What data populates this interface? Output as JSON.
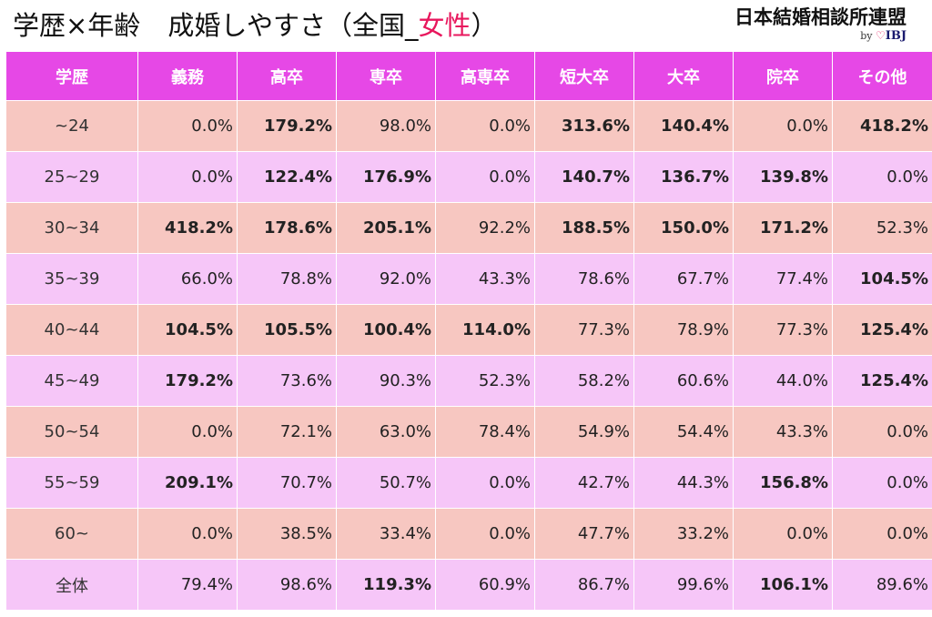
{
  "header": {
    "title_prefix": "学歴×年齢",
    "title_main": "成婚しやすさ（全国_",
    "title_highlight": "女性",
    "title_suffix": "）",
    "brand_name": "日本結婚相談所連盟",
    "brand_by": "by",
    "brand_heart": "♡",
    "brand_ibj": "IBJ"
  },
  "colors": {
    "header_bg": "#e648e6",
    "row_odd_bg": "#f7c7c1",
    "row_even_bg": "#f6c6f8",
    "highlight_text": "#e8175d"
  },
  "table": {
    "columns": [
      "学歴",
      "義務",
      "高卒",
      "専卒",
      "高専卒",
      "短大卒",
      "大卒",
      "院卒",
      "その他"
    ],
    "rows": [
      {
        "label": "~24",
        "cells": [
          {
            "v": "0.0%",
            "bold": false
          },
          {
            "v": "179.2%",
            "bold": true
          },
          {
            "v": "98.0%",
            "bold": false
          },
          {
            "v": "0.0%",
            "bold": false
          },
          {
            "v": "313.6%",
            "bold": true
          },
          {
            "v": "140.4%",
            "bold": true
          },
          {
            "v": "0.0%",
            "bold": false
          },
          {
            "v": "418.2%",
            "bold": true
          }
        ]
      },
      {
        "label": "25~29",
        "cells": [
          {
            "v": "0.0%",
            "bold": false
          },
          {
            "v": "122.4%",
            "bold": true
          },
          {
            "v": "176.9%",
            "bold": true
          },
          {
            "v": "0.0%",
            "bold": false
          },
          {
            "v": "140.7%",
            "bold": true
          },
          {
            "v": "136.7%",
            "bold": true
          },
          {
            "v": "139.8%",
            "bold": true
          },
          {
            "v": "0.0%",
            "bold": false
          }
        ]
      },
      {
        "label": "30~34",
        "cells": [
          {
            "v": "418.2%",
            "bold": true
          },
          {
            "v": "178.6%",
            "bold": true
          },
          {
            "v": "205.1%",
            "bold": true
          },
          {
            "v": "92.2%",
            "bold": false
          },
          {
            "v": "188.5%",
            "bold": true
          },
          {
            "v": "150.0%",
            "bold": true
          },
          {
            "v": "171.2%",
            "bold": true
          },
          {
            "v": "52.3%",
            "bold": false
          }
        ]
      },
      {
        "label": "35~39",
        "cells": [
          {
            "v": "66.0%",
            "bold": false
          },
          {
            "v": "78.8%",
            "bold": false
          },
          {
            "v": "92.0%",
            "bold": false
          },
          {
            "v": "43.3%",
            "bold": false
          },
          {
            "v": "78.6%",
            "bold": false
          },
          {
            "v": "67.7%",
            "bold": false
          },
          {
            "v": "77.4%",
            "bold": false
          },
          {
            "v": "104.5%",
            "bold": true
          }
        ]
      },
      {
        "label": "40~44",
        "cells": [
          {
            "v": "104.5%",
            "bold": true
          },
          {
            "v": "105.5%",
            "bold": true
          },
          {
            "v": "100.4%",
            "bold": true
          },
          {
            "v": "114.0%",
            "bold": true
          },
          {
            "v": "77.3%",
            "bold": false
          },
          {
            "v": "78.9%",
            "bold": false
          },
          {
            "v": "77.3%",
            "bold": false
          },
          {
            "v": "125.4%",
            "bold": true
          }
        ]
      },
      {
        "label": "45~49",
        "cells": [
          {
            "v": "179.2%",
            "bold": true
          },
          {
            "v": "73.6%",
            "bold": false
          },
          {
            "v": "90.3%",
            "bold": false
          },
          {
            "v": "52.3%",
            "bold": false
          },
          {
            "v": "58.2%",
            "bold": false
          },
          {
            "v": "60.6%",
            "bold": false
          },
          {
            "v": "44.0%",
            "bold": false
          },
          {
            "v": "125.4%",
            "bold": true
          }
        ]
      },
      {
        "label": "50~54",
        "cells": [
          {
            "v": "0.0%",
            "bold": false
          },
          {
            "v": "72.1%",
            "bold": false
          },
          {
            "v": "63.0%",
            "bold": false
          },
          {
            "v": "78.4%",
            "bold": false
          },
          {
            "v": "54.9%",
            "bold": false
          },
          {
            "v": "54.4%",
            "bold": false
          },
          {
            "v": "43.3%",
            "bold": false
          },
          {
            "v": "0.0%",
            "bold": false
          }
        ]
      },
      {
        "label": "55~59",
        "cells": [
          {
            "v": "209.1%",
            "bold": true
          },
          {
            "v": "70.7%",
            "bold": false
          },
          {
            "v": "50.7%",
            "bold": false
          },
          {
            "v": "0.0%",
            "bold": false
          },
          {
            "v": "42.7%",
            "bold": false
          },
          {
            "v": "44.3%",
            "bold": false
          },
          {
            "v": "156.8%",
            "bold": true
          },
          {
            "v": "0.0%",
            "bold": false
          }
        ]
      },
      {
        "label": "60~",
        "cells": [
          {
            "v": "0.0%",
            "bold": false
          },
          {
            "v": "38.5%",
            "bold": false
          },
          {
            "v": "33.4%",
            "bold": false
          },
          {
            "v": "0.0%",
            "bold": false
          },
          {
            "v": "47.7%",
            "bold": false
          },
          {
            "v": "33.2%",
            "bold": false
          },
          {
            "v": "0.0%",
            "bold": false
          },
          {
            "v": "0.0%",
            "bold": false
          }
        ]
      },
      {
        "label": "全体",
        "cells": [
          {
            "v": "79.4%",
            "bold": false
          },
          {
            "v": "98.6%",
            "bold": false
          },
          {
            "v": "119.3%",
            "bold": true
          },
          {
            "v": "60.9%",
            "bold": false
          },
          {
            "v": "86.7%",
            "bold": false
          },
          {
            "v": "99.6%",
            "bold": false
          },
          {
            "v": "106.1%",
            "bold": true
          },
          {
            "v": "89.6%",
            "bold": false
          }
        ]
      }
    ]
  }
}
